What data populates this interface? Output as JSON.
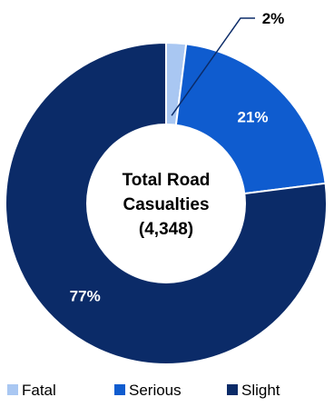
{
  "chart_data": {
    "type": "pie",
    "center_label": {
      "line1": "Total Road",
      "line2": "Casualties",
      "line3": "(4,348)"
    },
    "slices": [
      {
        "name": "Fatal",
        "value": 2,
        "label": "2%",
        "color": "#a9c7f2",
        "label_color": "#000000"
      },
      {
        "name": "Serious",
        "value": 21,
        "label": "21%",
        "color": "#0f5ccf",
        "label_color": "#ffffff"
      },
      {
        "name": "Slight",
        "value": 77,
        "label": "77%",
        "color": "#0b2b68",
        "label_color": "#ffffff"
      }
    ],
    "legend_position": "bottom"
  }
}
